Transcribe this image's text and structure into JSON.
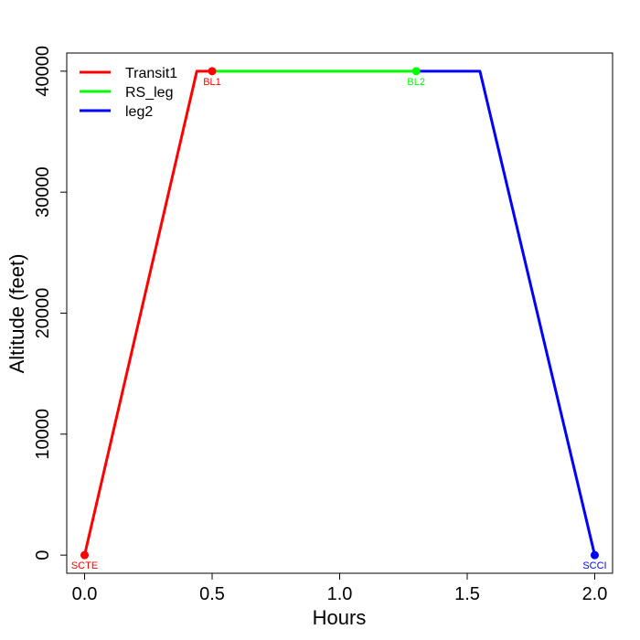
{
  "chart_data": {
    "type": "line",
    "title": "",
    "xlabel": "Hours",
    "ylabel": "Altitude (feet)",
    "xlim": [
      -0.07,
      2.07
    ],
    "ylim": [
      -1500,
      41500
    ],
    "xticks": [
      0.0,
      0.5,
      1.0,
      1.5,
      2.0
    ],
    "xtick_labels": [
      "0.0",
      "0.5",
      "1.0",
      "1.5",
      "2.0"
    ],
    "yticks": [
      0,
      10000,
      20000,
      30000,
      40000
    ],
    "ytick_labels": [
      "0",
      "10000",
      "20000",
      "30000",
      "40000"
    ],
    "grid": false,
    "legend_position": "top-left",
    "series": [
      {
        "name": "Transit1",
        "color": "#ff0000",
        "x": [
          0.0,
          0.44,
          0.5
        ],
        "y": [
          0,
          40000,
          40000
        ]
      },
      {
        "name": "RS_leg",
        "color": "#00ff00",
        "x": [
          0.5,
          1.3
        ],
        "y": [
          40000,
          40000
        ]
      },
      {
        "name": "leg2",
        "color": "#0000ff",
        "x": [
          1.3,
          1.55,
          2.0
        ],
        "y": [
          40000,
          40000,
          0
        ]
      }
    ],
    "points": [
      {
        "label": "SCTE",
        "x": 0.0,
        "y": 0,
        "color": "#ff0000"
      },
      {
        "label": "BL1",
        "x": 0.5,
        "y": 40000,
        "color": "#ff0000"
      },
      {
        "label": "BL2",
        "x": 1.3,
        "y": 40000,
        "color": "#00ff00"
      },
      {
        "label": "SCCI",
        "x": 2.0,
        "y": 0,
        "color": "#0000ff"
      }
    ]
  }
}
